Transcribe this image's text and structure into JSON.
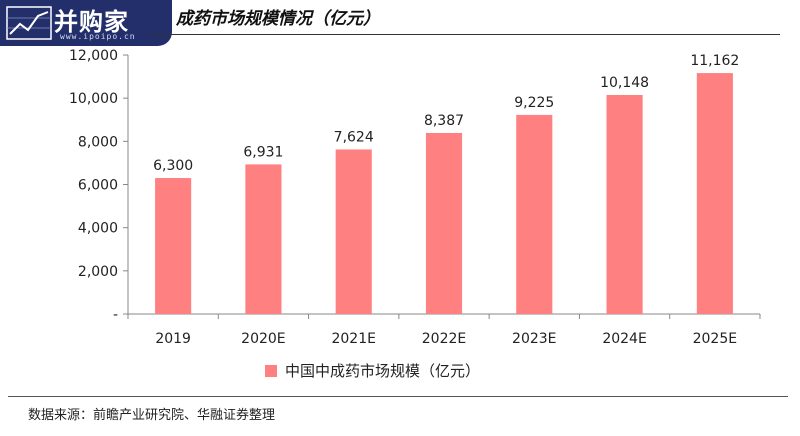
{
  "logo": {
    "text": "并购家",
    "url": "www.ipoipo.cn"
  },
  "title": "成药市场规模情况（亿元）",
  "source": "数据来源：前瞻产业研究院、华融证券整理",
  "colors": {
    "bar": "#ff8080",
    "logo_bg": "#232f6b",
    "axis": "#888888"
  },
  "chart_data": {
    "type": "bar",
    "categories": [
      "2019",
      "2020E",
      "2021E",
      "2022E",
      "2023E",
      "2024E",
      "2025E"
    ],
    "series": [
      {
        "name": "中国中成药市场规模（亿元）",
        "values": [
          6300,
          6931,
          7624,
          8387,
          9225,
          10148,
          11162
        ]
      }
    ],
    "data_labels": [
      "6,300",
      "6,931",
      "7,624",
      "8,387",
      "9,225",
      "10,148",
      "11,162"
    ],
    "yticks": [
      "-",
      "2,000",
      "4,000",
      "6,000",
      "8,000",
      "10,000",
      "12,000"
    ],
    "ylim": [
      0,
      12000
    ],
    "legend": "bottom",
    "grid": false
  }
}
